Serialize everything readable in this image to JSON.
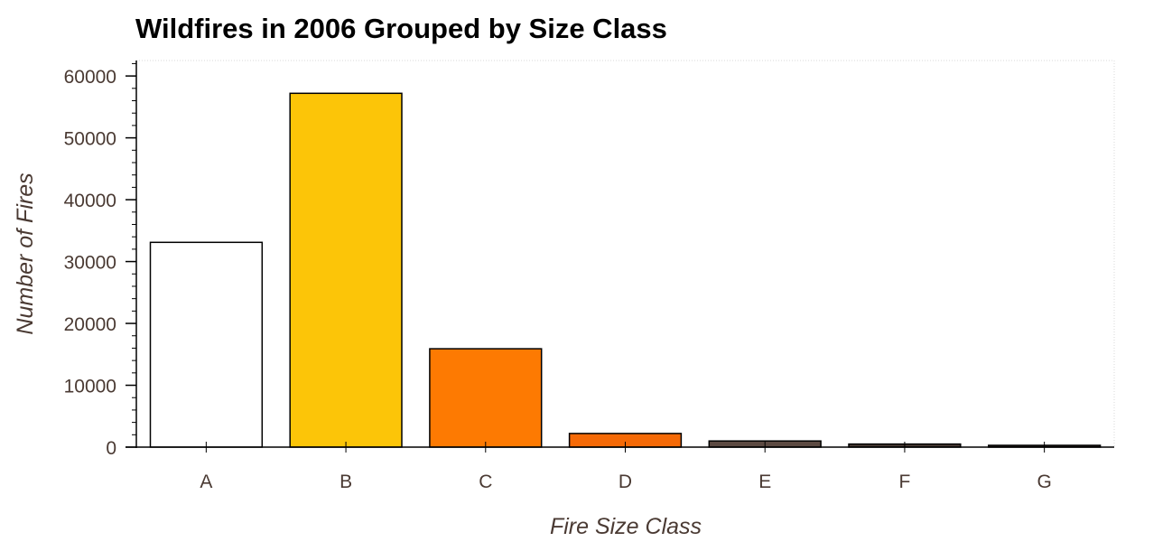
{
  "chart_data": {
    "type": "bar",
    "title": "Wildfires in 2006 Grouped by Size Class",
    "xlabel": "Fire Size Class",
    "ylabel": "Number of Fires",
    "categories": [
      "A",
      "B",
      "C",
      "D",
      "E",
      "F",
      "G"
    ],
    "values": [
      33100,
      57200,
      15900,
      2200,
      1000,
      500,
      250
    ],
    "colors": [
      "#ffffff",
      "#fcc508",
      "#fd7a02",
      "#f56a07",
      "#5c4a42",
      "#4a3b35",
      "#3a2d29"
    ],
    "ylim": [
      0,
      62500
    ],
    "yticks": [
      0,
      10000,
      20000,
      30000,
      40000,
      50000,
      60000
    ],
    "ytick_labels": [
      "0",
      "10000",
      "20000",
      "30000",
      "40000",
      "50000",
      "60000"
    ],
    "grid": false,
    "legend": "none"
  }
}
